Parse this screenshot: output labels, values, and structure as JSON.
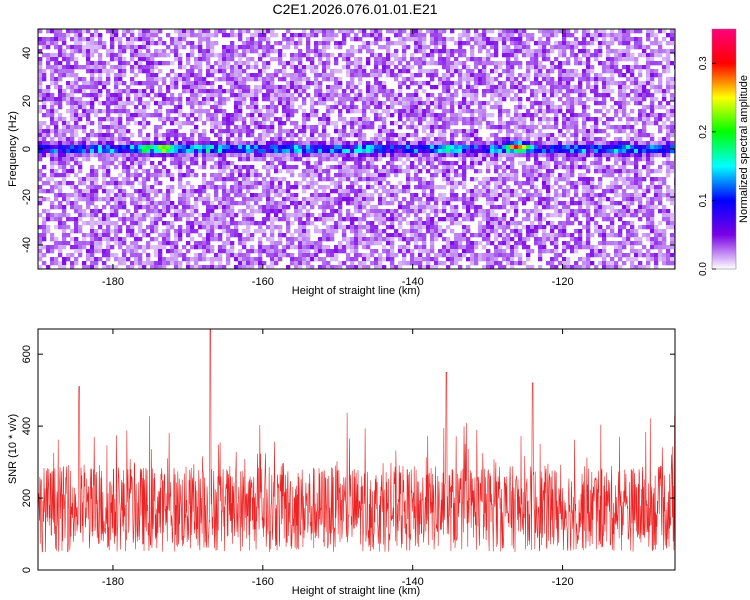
{
  "figure": {
    "title": "C2E1.2026.076.01.01.E21"
  },
  "chart_data": [
    {
      "type": "heatmap",
      "xlabel": "Height of straight line (km)",
      "ylabel": "Frequency (Hz)",
      "xlim": [
        -190,
        -105
      ],
      "ylim": [
        -50,
        50
      ],
      "x_ticks": [
        -180,
        -160,
        -140,
        -120
      ],
      "y_ticks": [
        -40,
        -20,
        0,
        20,
        40
      ],
      "colorbar": {
        "label": "Normalized spectral amplitude",
        "range": [
          0.0,
          0.35
        ],
        "ticks": [
          0.0,
          0.1,
          0.2,
          0.3
        ],
        "colors": [
          "#ffffff",
          "#7a00e6",
          "#0000ff",
          "#00ffff",
          "#00ff00",
          "#ffff00",
          "#ff0000",
          "#ff0080"
        ]
      },
      "noise_level": 0.02,
      "signal_band": {
        "frequency": 0,
        "typical_amplitude": 0.15,
        "peaks": [
          {
            "x": -176,
            "y": 0,
            "value": 0.22
          },
          {
            "x": -173,
            "y": 0,
            "value": 0.28
          },
          {
            "x": -167,
            "y": 0,
            "value": 0.2
          },
          {
            "x": -157,
            "y": 0,
            "value": 0.18
          },
          {
            "x": -146,
            "y": 0,
            "value": 0.2
          },
          {
            "x": -135,
            "y": 0,
            "value": 0.22
          },
          {
            "x": -126,
            "y": 1,
            "value": 0.34
          },
          {
            "x": -112,
            "y": 0,
            "value": 0.2
          }
        ]
      }
    },
    {
      "type": "line",
      "color": "#ff0000",
      "xlabel": "Height of straight line (km)",
      "ylabel": "SNR (10 * v/v)",
      "xlim": [
        -190,
        -105
      ],
      "ylim": [
        0,
        670
      ],
      "x_ticks": [
        -180,
        -160,
        -140,
        -120
      ],
      "y_ticks": [
        0,
        200,
        400,
        600
      ],
      "baseline": 170,
      "peaks": [
        {
          "x": -167,
          "y": 680
        },
        {
          "x": -135.5,
          "y": 550
        },
        {
          "x": -124,
          "y": 520
        },
        {
          "x": -184.5,
          "y": 510
        }
      ]
    }
  ]
}
